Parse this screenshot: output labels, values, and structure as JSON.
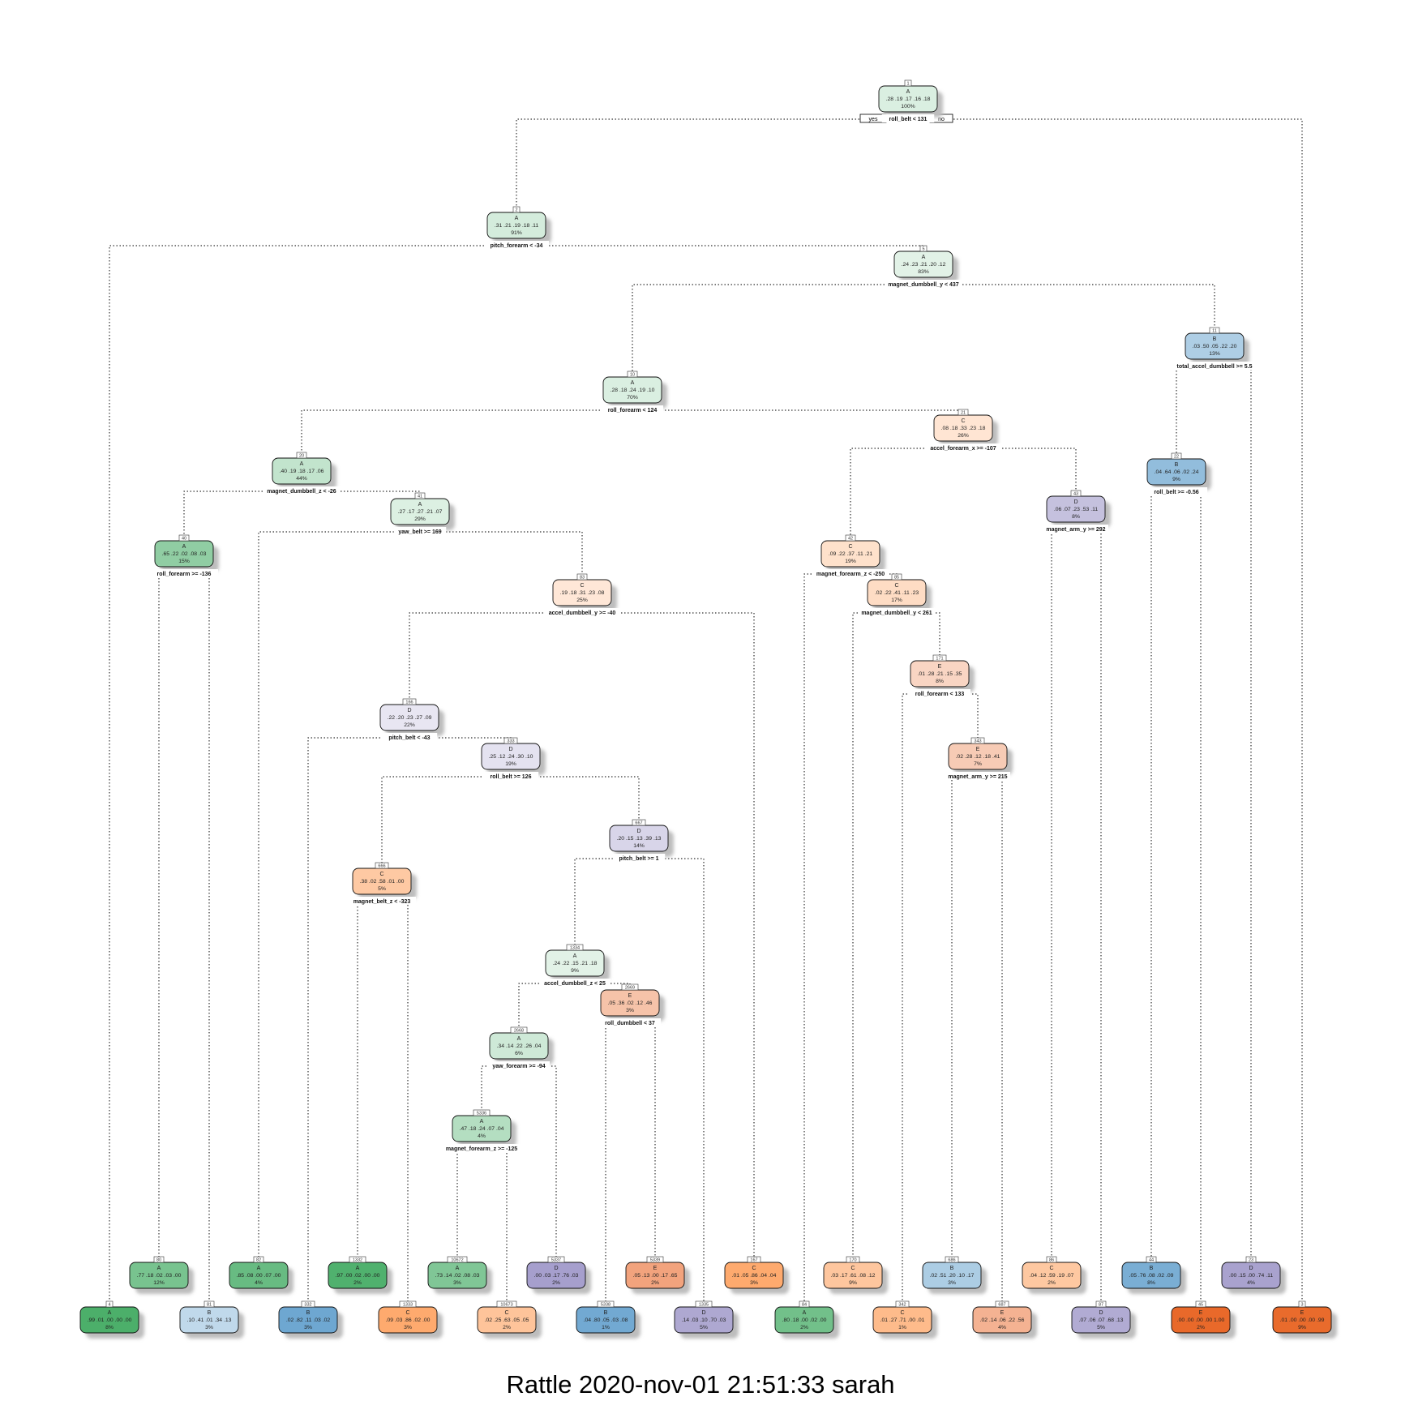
{
  "footer": "Rattle 2020-nov-01 21:51:33 sarah",
  "branch_labels": {
    "yes": "yes",
    "no": "no"
  },
  "palette": {
    "A": "#31a354",
    "B": "#3182bd",
    "C": "#fd8d3c",
    "D": "#756bb1",
    "E": "#e6550d"
  },
  "nodes": [
    {
      "id": "1",
      "cls": "A",
      "probs": ".28 .19 .17 .16 .18",
      "pct": "100%",
      "split": "roll_belt < 131",
      "shade": 0.28,
      "parent": null
    },
    {
      "id": "2",
      "cls": "A",
      "probs": ".31 .21 .19 .18 .11",
      "pct": "91%",
      "split": "pitch_forearm < -34",
      "shade": 0.31,
      "parent": "1"
    },
    {
      "id": "3",
      "cls": "E",
      "probs": ".01 .00 .00 .00 .99",
      "pct": "9%",
      "split": "",
      "shade": 0.99,
      "parent": "1"
    },
    {
      "id": "4",
      "cls": "A",
      "probs": ".99 .01 .00 .00 .00",
      "pct": "8%",
      "split": "",
      "shade": 0.99,
      "parent": "2"
    },
    {
      "id": "5",
      "cls": "A",
      "probs": ".24 .23 .21 .20 .12",
      "pct": "83%",
      "split": "magnet_dumbbell_y < 437",
      "shade": 0.24,
      "parent": "2"
    },
    {
      "id": "10",
      "cls": "A",
      "probs": ".28 .18 .24 .19 .10",
      "pct": "70%",
      "split": "roll_forearm < 124",
      "shade": 0.28,
      "parent": "5"
    },
    {
      "id": "11",
      "cls": "B",
      "probs": ".03 .50 .05 .22 .20",
      "pct": "13%",
      "split": "total_accel_dumbbell >= 5.5",
      "shade": 0.5,
      "parent": "5"
    },
    {
      "id": "20",
      "cls": "A",
      "probs": ".40 .19 .18 .17 .06",
      "pct": "44%",
      "split": "magnet_dumbbell_z < -26",
      "shade": 0.4,
      "parent": "10"
    },
    {
      "id": "21",
      "cls": "C",
      "probs": ".08 .18 .33 .23 .18",
      "pct": "26%",
      "split": "accel_forearm_x >= -107",
      "shade": 0.33,
      "parent": "10"
    },
    {
      "id": "22",
      "cls": "B",
      "probs": ".04 .64 .06 .02 .24",
      "pct": "9%",
      "split": "roll_belt >= -0.56",
      "shade": 0.64,
      "parent": "11"
    },
    {
      "id": "23",
      "cls": "D",
      "probs": ".00 .15 .00 .74 .11",
      "pct": "4%",
      "split": "",
      "shade": 0.74,
      "parent": "11"
    },
    {
      "id": "40",
      "cls": "A",
      "probs": ".65 .22 .02 .08 .03",
      "pct": "15%",
      "split": "roll_forearm >= -136",
      "shade": 0.65,
      "parent": "20"
    },
    {
      "id": "41",
      "cls": "A",
      "probs": ".27 .17 .27 .21 .07",
      "pct": "29%",
      "split": "yaw_belt >= 169",
      "shade": 0.27,
      "parent": "20"
    },
    {
      "id": "42",
      "cls": "C",
      "probs": ".09 .22 .37 .11 .21",
      "pct": "19%",
      "split": "magnet_forearm_z < -250",
      "shade": 0.37,
      "parent": "21"
    },
    {
      "id": "43",
      "cls": "D",
      "probs": ".06 .07 .23 .53 .11",
      "pct": "8%",
      "split": "magnet_arm_y >= 292",
      "shade": 0.53,
      "parent": "21"
    },
    {
      "id": "44",
      "cls": "B",
      "probs": ".05 .76 .08 .02 .09",
      "pct": "8%",
      "split": "",
      "shade": 0.76,
      "parent": "22"
    },
    {
      "id": "45",
      "cls": "E",
      "probs": ".00 .00 .00 .00 1.00",
      "pct": "2%",
      "split": "",
      "shade": 1.0,
      "parent": "22"
    },
    {
      "id": "80",
      "cls": "A",
      "probs": ".77 .18 .02 .03 .00",
      "pct": "12%",
      "split": "",
      "shade": 0.77,
      "parent": "40"
    },
    {
      "id": "81",
      "cls": "B",
      "probs": ".10 .41 .01 .34 .13",
      "pct": "3%",
      "split": "",
      "shade": 0.41,
      "parent": "40"
    },
    {
      "id": "82",
      "cls": "A",
      "probs": ".85 .08 .00 .07 .00",
      "pct": "4%",
      "split": "",
      "shade": 0.85,
      "parent": "41"
    },
    {
      "id": "83",
      "cls": "C",
      "probs": ".19 .18 .31 .23 .08",
      "pct": "25%",
      "split": "accel_dumbbell_y >= -40",
      "shade": 0.31,
      "parent": "41"
    },
    {
      "id": "84",
      "cls": "A",
      "probs": ".80 .18 .00 .02 .00",
      "pct": "2%",
      "split": "",
      "shade": 0.8,
      "parent": "42"
    },
    {
      "id": "85",
      "cls": "C",
      "probs": ".02 .22 .41 .11 .23",
      "pct": "17%",
      "split": "magnet_dumbbell_y < 261",
      "shade": 0.41,
      "parent": "42"
    },
    {
      "id": "86",
      "cls": "C",
      "probs": ".04 .12 .59 .19 .07",
      "pct": "2%",
      "split": "",
      "shade": 0.59,
      "parent": "43"
    },
    {
      "id": "87",
      "cls": "D",
      "probs": ".07 .06 .07 .68 .13",
      "pct": "5%",
      "split": "",
      "shade": 0.68,
      "parent": "43"
    },
    {
      "id": "166",
      "cls": "D",
      "probs": ".22 .20 .23 .27 .09",
      "pct": "22%",
      "split": "pitch_belt < -43",
      "shade": 0.27,
      "parent": "83"
    },
    {
      "id": "167",
      "cls": "C",
      "probs": ".01 .05 .86 .04 .04",
      "pct": "3%",
      "split": "",
      "shade": 0.86,
      "parent": "83"
    },
    {
      "id": "170",
      "cls": "C",
      "probs": ".03 .17 .61 .08 .12",
      "pct": "9%",
      "split": "",
      "shade": 0.61,
      "parent": "85"
    },
    {
      "id": "171",
      "cls": "E",
      "probs": ".01 .28 .21 .15 .35",
      "pct": "8%",
      "split": "roll_forearm < 133",
      "shade": 0.35,
      "parent": "85"
    },
    {
      "id": "332",
      "cls": "B",
      "probs": ".02 .82 .11 .03 .02",
      "pct": "3%",
      "split": "",
      "shade": 0.82,
      "parent": "166"
    },
    {
      "id": "333",
      "cls": "D",
      "probs": ".25 .12 .24 .30 .10",
      "pct": "19%",
      "split": "roll_belt >= 126",
      "shade": 0.3,
      "parent": "166"
    },
    {
      "id": "342",
      "cls": "C",
      "probs": ".01 .27 .71 .00 .01",
      "pct": "1%",
      "split": "",
      "shade": 0.71,
      "parent": "171"
    },
    {
      "id": "343",
      "cls": "E",
      "probs": ".02 .28 .12 .18 .41",
      "pct": "7%",
      "split": "magnet_arm_y >= 215",
      "shade": 0.41,
      "parent": "171"
    },
    {
      "id": "666",
      "cls": "C",
      "probs": ".38 .02 .58 .01 .00",
      "pct": "5%",
      "split": "magnet_belt_z < -323",
      "shade": 0.58,
      "parent": "333"
    },
    {
      "id": "667",
      "cls": "D",
      "probs": ".20 .15 .13 .39 .13",
      "pct": "14%",
      "split": "pitch_belt >= 1",
      "shade": 0.39,
      "parent": "333"
    },
    {
      "id": "686",
      "cls": "B",
      "probs": ".02 .51 .20 .10 .17",
      "pct": "3%",
      "split": "",
      "shade": 0.51,
      "parent": "343"
    },
    {
      "id": "687",
      "cls": "E",
      "probs": ".02 .14 .06 .22 .56",
      "pct": "4%",
      "split": "",
      "shade": 0.56,
      "parent": "343"
    },
    {
      "id": "1332",
      "cls": "A",
      "probs": ".97 .00 .02 .00 .00",
      "pct": "2%",
      "split": "",
      "shade": 0.97,
      "parent": "666"
    },
    {
      "id": "1333",
      "cls": "C",
      "probs": ".09 .03 .86 .02 .00",
      "pct": "3%",
      "split": "",
      "shade": 0.86,
      "parent": "666"
    },
    {
      "id": "1334",
      "cls": "A",
      "probs": ".24 .22 .15 .21 .18",
      "pct": "9%",
      "split": "accel_dumbbell_z < 25",
      "shade": 0.24,
      "parent": "667"
    },
    {
      "id": "1335",
      "cls": "D",
      "probs": ".14 .03 .10 .70 .03",
      "pct": "5%",
      "split": "",
      "shade": 0.7,
      "parent": "667"
    },
    {
      "id": "2668",
      "cls": "A",
      "probs": ".34 .14 .22 .26 .04",
      "pct": "6%",
      "split": "yaw_forearm >= -94",
      "shade": 0.34,
      "parent": "1334"
    },
    {
      "id": "2669",
      "cls": "E",
      "probs": ".05 .36 .02 .12 .46",
      "pct": "3%",
      "split": "roll_dumbbell < 37",
      "shade": 0.46,
      "parent": "1334"
    },
    {
      "id": "5336",
      "cls": "A",
      "probs": ".47 .18 .24 .07 .04",
      "pct": "4%",
      "split": "magnet_forearm_z >= -125",
      "shade": 0.47,
      "parent": "2668"
    },
    {
      "id": "5337",
      "cls": "D",
      "probs": ".00 .03 .17 .76 .03",
      "pct": "2%",
      "split": "",
      "shade": 0.76,
      "parent": "2668"
    },
    {
      "id": "5338",
      "cls": "B",
      "probs": ".04 .80 .05 .03 .08",
      "pct": "1%",
      "split": "",
      "shade": 0.8,
      "parent": "2669"
    },
    {
      "id": "5339",
      "cls": "E",
      "probs": ".05 .13 .00 .17 .65",
      "pct": "2%",
      "split": "",
      "shade": 0.65,
      "parent": "2669"
    },
    {
      "id": "10672",
      "cls": "A",
      "probs": ".73 .14 .02 .08 .03",
      "pct": "3%",
      "split": "",
      "shade": 0.73,
      "parent": "5336"
    },
    {
      "id": "10673",
      "cls": "C",
      "probs": ".02 .25 .63 .05 .05",
      "pct": "2%",
      "split": "",
      "shade": 0.63,
      "parent": "5336"
    }
  ]
}
